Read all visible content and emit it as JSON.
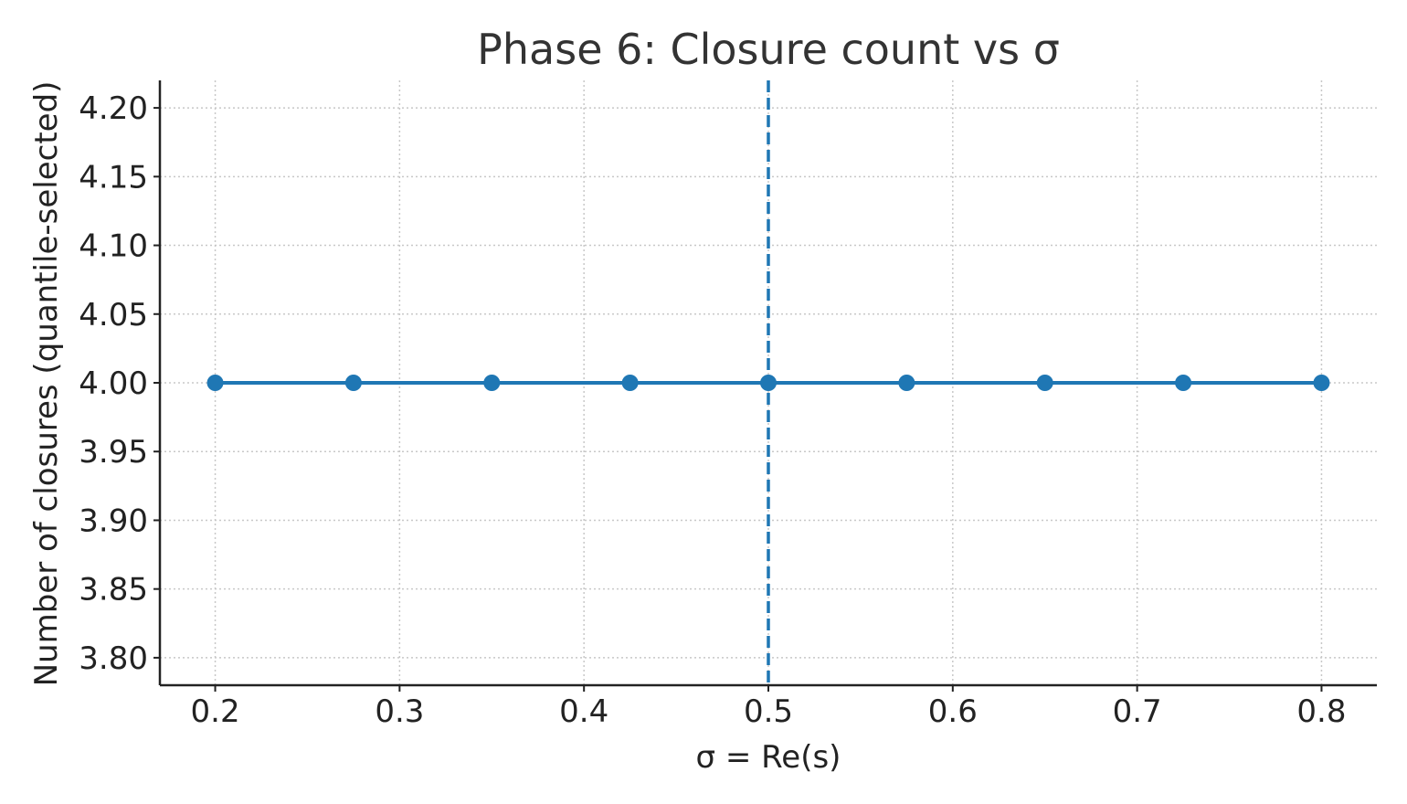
{
  "chart_data": {
    "type": "line",
    "title": "Phase 6: Closure count vs σ",
    "xlabel": "σ = Re(s)",
    "ylabel": "Number of closures (quantile-selected)",
    "x": [
      0.2,
      0.275,
      0.35,
      0.425,
      0.5,
      0.575,
      0.65,
      0.725,
      0.8
    ],
    "series": [
      {
        "values": [
          4.0,
          4.0,
          4.0,
          4.0,
          4.0,
          4.0,
          4.0,
          4.0,
          4.0
        ],
        "color": "#1f77b4",
        "marker": "circle"
      }
    ],
    "xlim": [
      0.17,
      0.83
    ],
    "ylim": [
      3.78,
      4.22
    ],
    "xticks": [
      0.2,
      0.3,
      0.4,
      0.5,
      0.6,
      0.7,
      0.8
    ],
    "xtick_labels": [
      "0.2",
      "0.3",
      "0.4",
      "0.5",
      "0.6",
      "0.7",
      "0.8"
    ],
    "yticks": [
      3.8,
      3.85,
      3.9,
      3.95,
      4.0,
      4.05,
      4.1,
      4.15,
      4.2
    ],
    "ytick_labels": [
      "3.80",
      "3.85",
      "3.90",
      "3.95",
      "4.00",
      "4.05",
      "4.10",
      "4.15",
      "4.20"
    ],
    "vline": {
      "x": 0.5,
      "style": "dashed",
      "color": "#1f77b4"
    },
    "grid": true,
    "legend": "none"
  }
}
